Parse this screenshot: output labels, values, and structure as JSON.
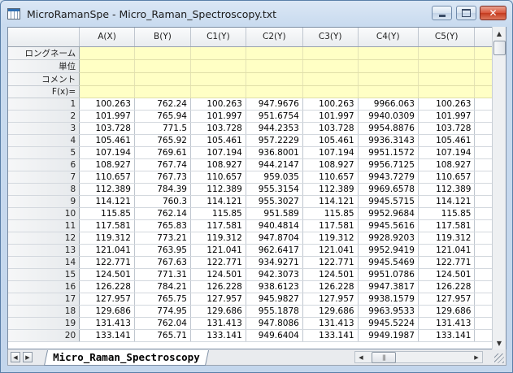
{
  "window": {
    "title": "MicroRamanSpe - Micro_Raman_Spectroscopy.txt"
  },
  "columns": [
    "A(X)",
    "B(Y)",
    "C1(Y)",
    "C2(Y)",
    "C3(Y)",
    "C4(Y)",
    "C5(Y)"
  ],
  "meta_labels": [
    "ロングネーム",
    "単位",
    "コメント",
    "F(x)="
  ],
  "rows": [
    {
      "n": "1",
      "v": [
        "100.263",
        "762.24",
        "100.263",
        "947.9676",
        "100.263",
        "9966.063",
        "100.263"
      ]
    },
    {
      "n": "2",
      "v": [
        "101.997",
        "765.94",
        "101.997",
        "951.6754",
        "101.997",
        "9940.0309",
        "101.997"
      ]
    },
    {
      "n": "3",
      "v": [
        "103.728",
        "771.5",
        "103.728",
        "944.2353",
        "103.728",
        "9954.8876",
        "103.728"
      ]
    },
    {
      "n": "4",
      "v": [
        "105.461",
        "765.92",
        "105.461",
        "957.2229",
        "105.461",
        "9936.3143",
        "105.461"
      ]
    },
    {
      "n": "5",
      "v": [
        "107.194",
        "769.61",
        "107.194",
        "936.8001",
        "107.194",
        "9951.1572",
        "107.194"
      ]
    },
    {
      "n": "6",
      "v": [
        "108.927",
        "767.74",
        "108.927",
        "944.2147",
        "108.927",
        "9956.7125",
        "108.927"
      ]
    },
    {
      "n": "7",
      "v": [
        "110.657",
        "767.73",
        "110.657",
        "959.035",
        "110.657",
        "9943.7279",
        "110.657"
      ]
    },
    {
      "n": "8",
      "v": [
        "112.389",
        "784.39",
        "112.389",
        "955.3154",
        "112.389",
        "9969.6578",
        "112.389"
      ]
    },
    {
      "n": "9",
      "v": [
        "114.121",
        "760.3",
        "114.121",
        "955.3027",
        "114.121",
        "9945.5715",
        "114.121"
      ]
    },
    {
      "n": "10",
      "v": [
        "115.85",
        "762.14",
        "115.85",
        "951.589",
        "115.85",
        "9952.9684",
        "115.85"
      ]
    },
    {
      "n": "11",
      "v": [
        "117.581",
        "765.83",
        "117.581",
        "940.4814",
        "117.581",
        "9945.5616",
        "117.581"
      ]
    },
    {
      "n": "12",
      "v": [
        "119.312",
        "773.21",
        "119.312",
        "947.8704",
        "119.312",
        "9928.9203",
        "119.312"
      ]
    },
    {
      "n": "13",
      "v": [
        "121.041",
        "763.95",
        "121.041",
        "962.6417",
        "121.041",
        "9952.9419",
        "121.041"
      ]
    },
    {
      "n": "14",
      "v": [
        "122.771",
        "767.63",
        "122.771",
        "934.9271",
        "122.771",
        "9945.5469",
        "122.771"
      ]
    },
    {
      "n": "15",
      "v": [
        "124.501",
        "771.31",
        "124.501",
        "942.3073",
        "124.501",
        "9951.0786",
        "124.501"
      ]
    },
    {
      "n": "16",
      "v": [
        "126.228",
        "784.21",
        "126.228",
        "938.6123",
        "126.228",
        "9947.3817",
        "126.228"
      ]
    },
    {
      "n": "17",
      "v": [
        "127.957",
        "765.75",
        "127.957",
        "945.9827",
        "127.957",
        "9938.1579",
        "127.957"
      ]
    },
    {
      "n": "18",
      "v": [
        "129.686",
        "774.95",
        "129.686",
        "955.1878",
        "129.686",
        "9963.9533",
        "129.686"
      ]
    },
    {
      "n": "19",
      "v": [
        "131.413",
        "762.04",
        "131.413",
        "947.8086",
        "131.413",
        "9945.5224",
        "131.413"
      ]
    },
    {
      "n": "20",
      "v": [
        "133.141",
        "765.71",
        "133.141",
        "949.6404",
        "133.141",
        "9949.1987",
        "133.141"
      ]
    }
  ],
  "tab": {
    "label": "Micro_Raman_Spectroscopy"
  }
}
